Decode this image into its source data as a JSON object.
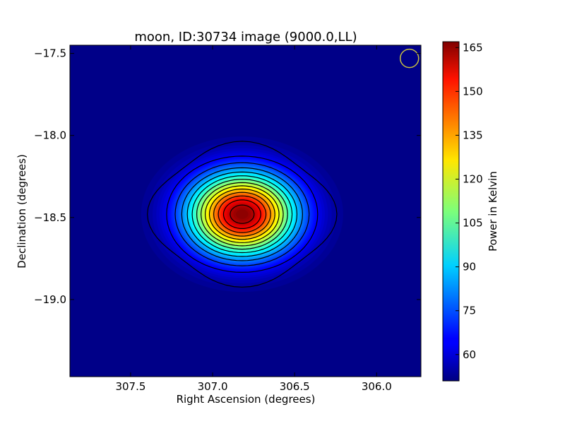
{
  "chart_data": {
    "type": "heatmap",
    "title": "moon, ID:30734 image (9000.0,LL)",
    "xlabel": "Right Ascension (degrees)",
    "ylabel": "Declination (degrees)",
    "x_inverted": true,
    "xlim": [
      307.87,
      305.73
    ],
    "ylim": [
      -19.47,
      -17.45
    ],
    "x_ticks": [
      {
        "value": 307.5,
        "label": "307.5"
      },
      {
        "value": 307.0,
        "label": "307.0"
      },
      {
        "value": 306.5,
        "label": "306.5"
      },
      {
        "value": 306.0,
        "label": "306.0"
      }
    ],
    "y_ticks": [
      {
        "value": -17.5,
        "label": "−17.5"
      },
      {
        "value": -18.0,
        "label": "−18.0"
      },
      {
        "value": -18.5,
        "label": "−18.5"
      },
      {
        "value": -19.0,
        "label": "−19.0"
      }
    ],
    "source": {
      "ra_center": 306.82,
      "dec_center": -18.48,
      "peak_kelvin": 167,
      "background_kelvin": 51
    },
    "beam_marker": {
      "ra": 305.8,
      "dec": -17.53
    },
    "colorbar": {
      "label": "Power in Kelvin",
      "vmin": 51,
      "vmax": 167,
      "colormap": "jet",
      "ticks": [
        {
          "value": 60,
          "label": "60"
        },
        {
          "value": 75,
          "label": "75"
        },
        {
          "value": 90,
          "label": "90"
        },
        {
          "value": 105,
          "label": "105"
        },
        {
          "value": 120,
          "label": "120"
        },
        {
          "value": 135,
          "label": "135"
        },
        {
          "value": 150,
          "label": "150"
        },
        {
          "value": 165,
          "label": "165"
        }
      ]
    },
    "contour_color": "#000000",
    "beam_marker_color": "#c8c040",
    "grid": false
  }
}
